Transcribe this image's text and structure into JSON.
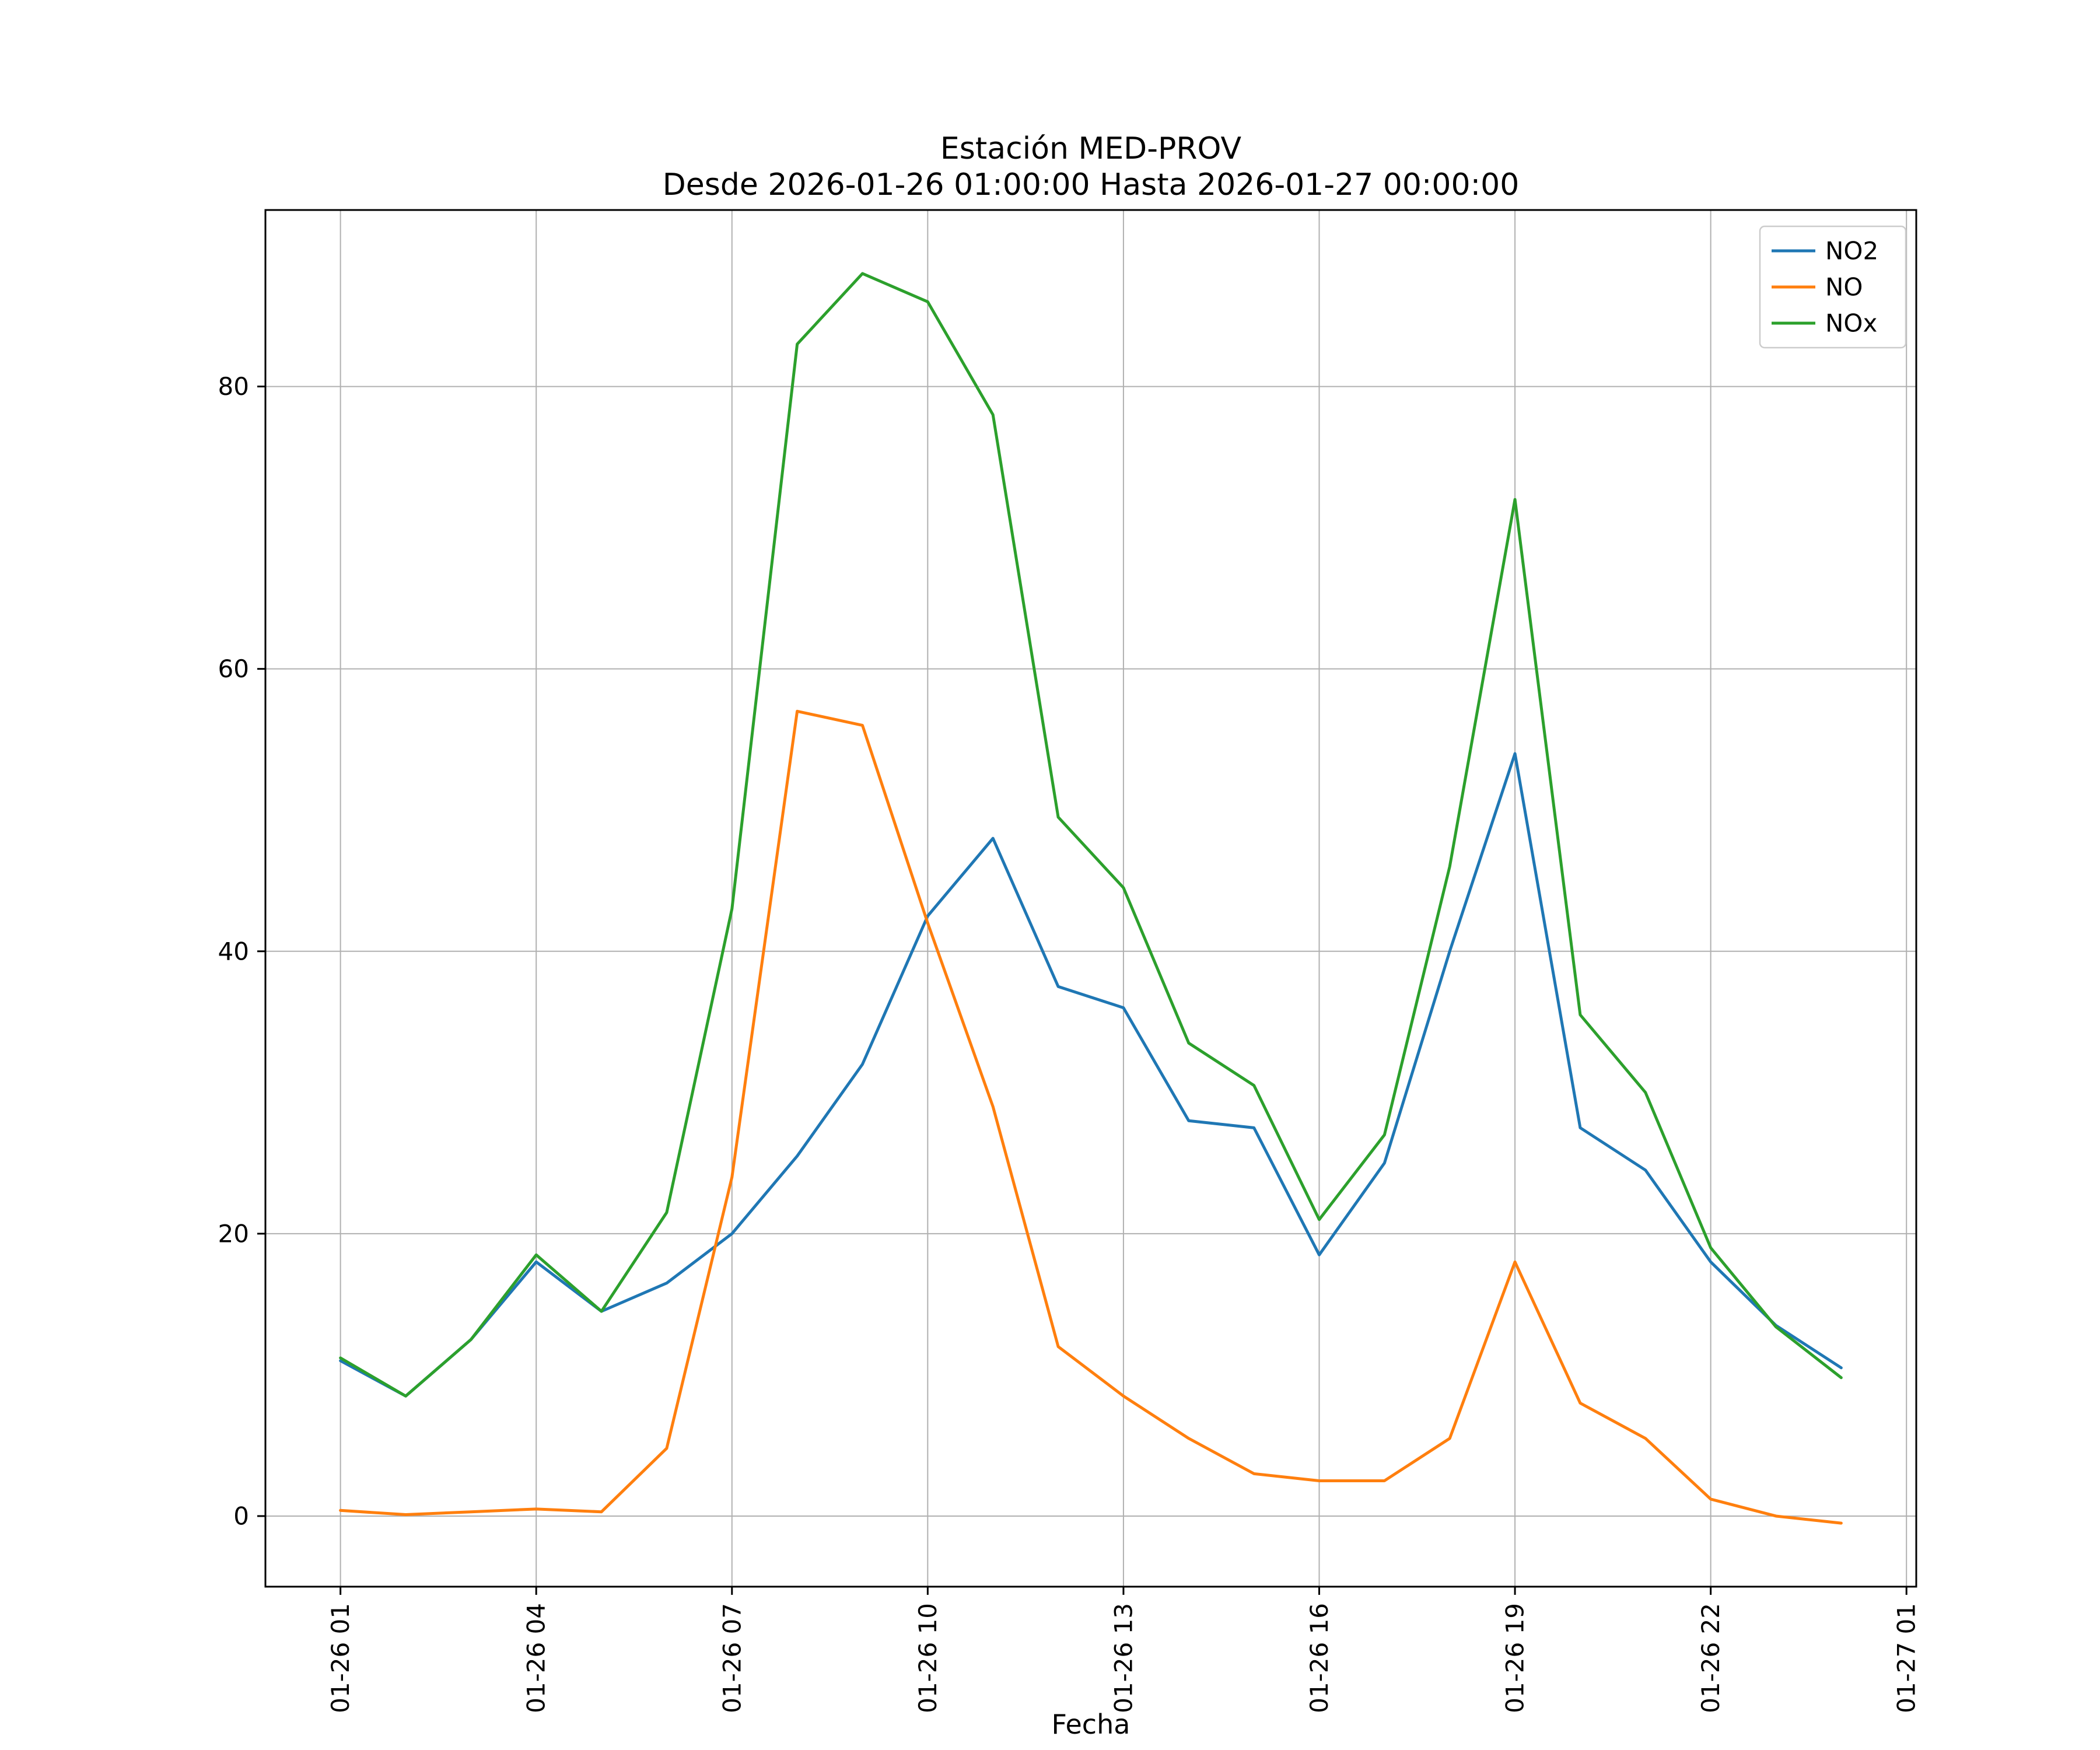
{
  "chart_data": {
    "type": "line",
    "title": "Estación MED-PROV",
    "subtitle": "Desde 2026-01-26 01:00:00 Hasta 2026-01-27 00:00:00",
    "xlabel": "Fecha",
    "ylabel": "",
    "grid": true,
    "legend_position": "upper right",
    "xlim": [
      -0.15,
      25.15
    ],
    "ylim": [
      -5,
      92.5
    ],
    "x_hours": [
      1,
      2,
      3,
      4,
      5,
      6,
      7,
      8,
      9,
      10,
      11,
      12,
      13,
      14,
      15,
      16,
      17,
      18,
      19,
      20,
      21,
      22,
      23,
      24
    ],
    "x_ticks": [
      {
        "hour": 1,
        "label": "01-26 01"
      },
      {
        "hour": 4,
        "label": "01-26 04"
      },
      {
        "hour": 7,
        "label": "01-26 07"
      },
      {
        "hour": 10,
        "label": "01-26 10"
      },
      {
        "hour": 13,
        "label": "01-26 13"
      },
      {
        "hour": 16,
        "label": "01-26 16"
      },
      {
        "hour": 19,
        "label": "01-26 19"
      },
      {
        "hour": 22,
        "label": "01-26 22"
      },
      {
        "hour": 25,
        "label": "01-27 01"
      }
    ],
    "y_ticks": [
      0,
      20,
      40,
      60,
      80
    ],
    "series": [
      {
        "name": "NO2",
        "color": "#1f77b4",
        "values": [
          11,
          8.5,
          12.5,
          18,
          14.5,
          16.5,
          20,
          25.5,
          32,
          42.5,
          48,
          37.5,
          36,
          28,
          27.5,
          18.5,
          25,
          40,
          54,
          27.5,
          24.5,
          18,
          13.5,
          10.5
        ]
      },
      {
        "name": "NO",
        "color": "#ff7f0e",
        "values": [
          0.4,
          0.1,
          0.3,
          0.5,
          0.3,
          4.8,
          24,
          57,
          56,
          42,
          29,
          12,
          8.5,
          5.5,
          3,
          2.5,
          2.5,
          5.5,
          18,
          8,
          5.5,
          1.2,
          0,
          -0.5
        ]
      },
      {
        "name": "NOx",
        "color": "#2ca02c",
        "values": [
          11.2,
          8.5,
          12.5,
          18.5,
          14.5,
          21.5,
          43,
          83,
          88,
          86,
          78,
          49.5,
          44.5,
          33.5,
          30.5,
          21,
          27,
          46,
          72,
          35.5,
          30,
          19,
          13.4,
          9.8
        ]
      }
    ],
    "style": {
      "grid_color": "#b0b0b0",
      "spine_color": "#000000",
      "background": "#ffffff",
      "legend_border": "#cccccc"
    }
  }
}
